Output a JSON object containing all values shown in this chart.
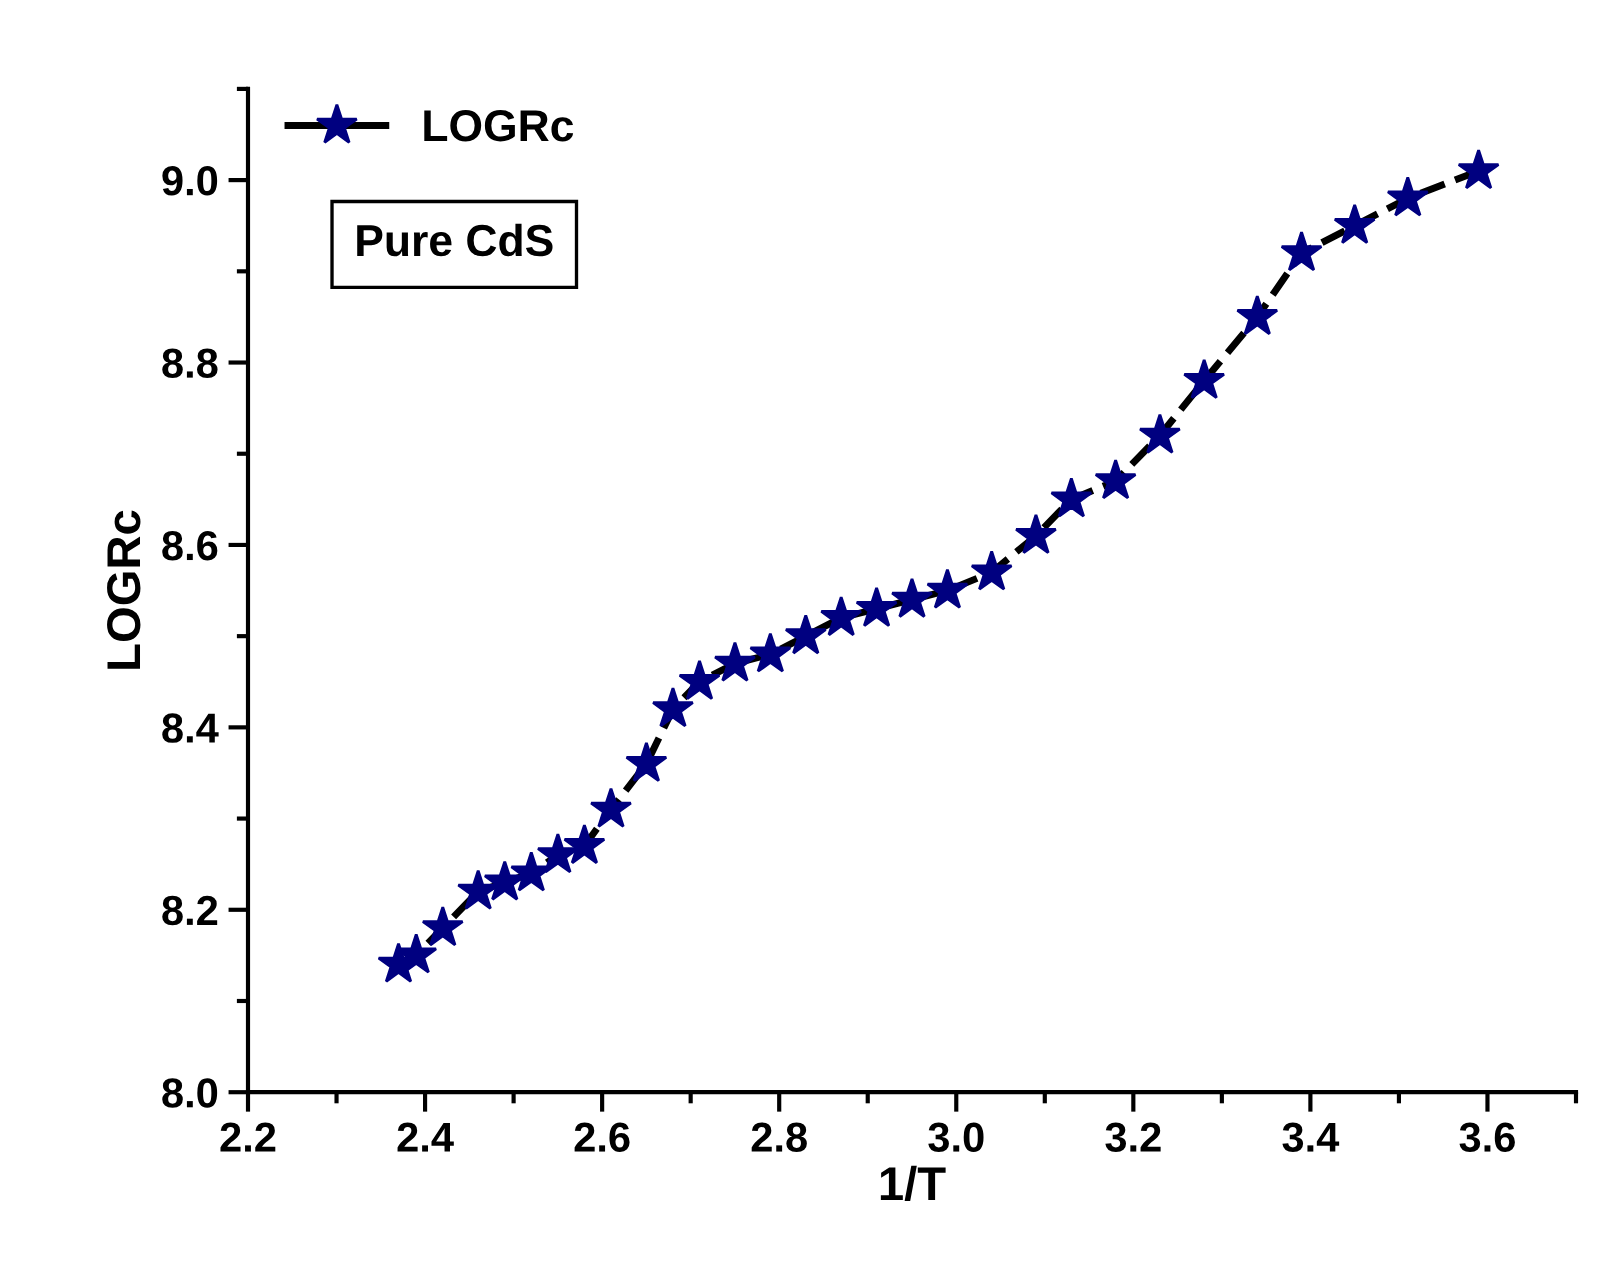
{
  "chart_data": {
    "type": "line",
    "xlabel": "1/T",
    "ylabel": "LOGRc",
    "annotations": [
      "Pure CdS"
    ],
    "series": [
      {
        "name": "LOGRc",
        "color": "#000080",
        "x": [
          2.37,
          2.39,
          2.42,
          2.46,
          2.49,
          2.52,
          2.55,
          2.58,
          2.61,
          2.65,
          2.68,
          2.71,
          2.75,
          2.79,
          2.83,
          2.87,
          2.91,
          2.95,
          2.99,
          3.04,
          3.09,
          3.13,
          3.18,
          3.23,
          3.28,
          3.34,
          3.39,
          3.45,
          3.51,
          3.59
        ],
        "values": [
          8.14,
          8.15,
          8.18,
          8.22,
          8.23,
          8.24,
          8.26,
          8.27,
          8.31,
          8.36,
          8.42,
          8.45,
          8.47,
          8.48,
          8.5,
          8.52,
          8.53,
          8.54,
          8.55,
          8.57,
          8.61,
          8.65,
          8.67,
          8.72,
          8.78,
          8.85,
          8.92,
          8.95,
          8.98,
          9.01
        ]
      }
    ],
    "xlim": [
      2.2,
      3.7
    ],
    "xticks": [
      2.2,
      2.4,
      2.6,
      2.8,
      {
        "value": 3,
        "label": "3.0"
      },
      3.2,
      3.4,
      3.6
    ],
    "ylim": [
      8.0,
      9.1
    ],
    "yticks": [
      {
        "value": 8,
        "label": "8.0"
      },
      8.2,
      8.4,
      8.6,
      8.8,
      {
        "value": 9,
        "label": "9.0"
      }
    ],
    "grid": false,
    "legend": "top left",
    "marker": "star",
    "line_style": "dashed"
  }
}
